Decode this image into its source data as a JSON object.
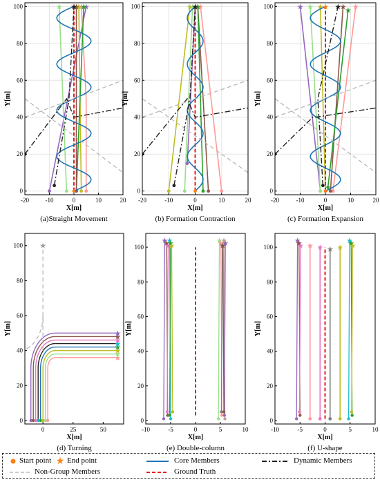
{
  "figure": {
    "colors": {
      "core": "#1f77b4",
      "dynamic": "#222222",
      "non_group": "#b8b8b8",
      "ground_truth": "#e41a1c",
      "start_marker": "#ff7f0e",
      "end_marker": "#ff7f0e"
    },
    "member_colors": [
      "#9467bd",
      "#8c564b",
      "#e377c2",
      "#17becf",
      "#2ca02c",
      "#bcbd22",
      "#98df8a",
      "#ff9896",
      "#7f7f7f",
      "#c49c94"
    ]
  },
  "chart_data": [
    {
      "type": "line",
      "caption": "(a)Straight Movement",
      "xlabel": "X[m]",
      "ylabel": "Y[m]",
      "xlim": [
        -20,
        20
      ],
      "ylim": [
        -2,
        102
      ],
      "xticks": [
        -20,
        -10,
        0,
        10,
        20
      ],
      "yticks": [
        0,
        20,
        40,
        60,
        80,
        100
      ],
      "grid": true,
      "series": [
        {
          "role": "member",
          "color": "#9467bd",
          "x": [
            -10,
            5
          ],
          "y": [
            0,
            100
          ]
        },
        {
          "role": "member",
          "color": "#ff9896",
          "x": [
            5,
            5,
            3
          ],
          "y": [
            0,
            50,
            100
          ]
        },
        {
          "role": "member",
          "color": "#bcbd22",
          "x": [
            3,
            2
          ],
          "y": [
            0,
            100
          ]
        },
        {
          "role": "member",
          "color": "#98df8a",
          "x": [
            -3,
            -6
          ],
          "y": [
            0,
            100
          ]
        },
        {
          "role": "member",
          "color": "#2ca02c",
          "x": [
            1,
            4
          ],
          "y": [
            0,
            100
          ]
        },
        {
          "role": "member",
          "color": "#8c564b",
          "x": [
            1,
            1
          ],
          "y": [
            0,
            100
          ]
        },
        {
          "role": "ground_truth",
          "color": "#e41a1c",
          "x": [
            0,
            0
          ],
          "y": [
            0,
            100
          ]
        },
        {
          "role": "core",
          "color": "#1f77b4",
          "wave": {
            "amp": 7,
            "period": 25,
            "x0": 0
          },
          "y": [
            0,
            100
          ]
        },
        {
          "role": "dynamic",
          "color": "#222222",
          "x": [
            -8,
            -2,
            0
          ],
          "y": [
            3,
            50,
            100
          ]
        },
        {
          "role": "dynamic",
          "color": "#222222",
          "x": [
            -20,
            -3,
            0,
            20
          ],
          "y": [
            20,
            50,
            40,
            45
          ]
        },
        {
          "role": "non_group",
          "color": "#b8b8b8",
          "x": [
            -20,
            20
          ],
          "y": [
            40,
            60
          ]
        },
        {
          "role": "non_group",
          "color": "#b8b8b8",
          "x": [
            -20,
            20
          ],
          "y": [
            50,
            10
          ]
        }
      ]
    },
    {
      "type": "line",
      "caption": "(b) Formation Contraction",
      "xlabel": "X[m]",
      "ylabel": "Y[m]",
      "xlim": [
        -20,
        20
      ],
      "ylim": [
        -2,
        102
      ],
      "xticks": [
        -20,
        -10,
        0,
        10,
        20
      ],
      "yticks": [
        0,
        20,
        40,
        60,
        80,
        100
      ],
      "grid": true,
      "series": [
        {
          "role": "member",
          "color": "#bcbd22",
          "x": [
            -10,
            -2
          ],
          "y": [
            0,
            100
          ]
        },
        {
          "role": "member",
          "color": "#98df8a",
          "x": [
            -4,
            -1
          ],
          "y": [
            0,
            100
          ]
        },
        {
          "role": "member",
          "color": "#ff9896",
          "x": [
            10,
            2
          ],
          "y": [
            0,
            100
          ]
        },
        {
          "role": "member",
          "color": "#8c564b",
          "x": [
            5,
            1
          ],
          "y": [
            0,
            100
          ]
        },
        {
          "role": "member",
          "color": "#2ca02c",
          "x": [
            3,
            1
          ],
          "y": [
            0,
            100
          ]
        },
        {
          "role": "member",
          "color": "#9467bd",
          "x": [
            -3,
            0
          ],
          "y": [
            15,
            100
          ]
        },
        {
          "role": "ground_truth",
          "color": "#e41a1c",
          "x": [
            0,
            0
          ],
          "y": [
            0,
            100
          ]
        },
        {
          "role": "core",
          "color": "#1f77b4",
          "wave": {
            "amp": 3,
            "period": 25,
            "x0": 0
          },
          "y": [
            0,
            100
          ]
        },
        {
          "role": "dynamic",
          "color": "#222222",
          "x": [
            -8,
            -2,
            0
          ],
          "y": [
            3,
            50,
            100
          ]
        },
        {
          "role": "dynamic",
          "color": "#222222",
          "x": [
            -20,
            -3,
            0,
            20
          ],
          "y": [
            20,
            50,
            40,
            45
          ]
        },
        {
          "role": "non_group",
          "color": "#b8b8b8",
          "x": [
            -20,
            20
          ],
          "y": [
            40,
            60
          ]
        },
        {
          "role": "non_group",
          "color": "#b8b8b8",
          "x": [
            -20,
            20
          ],
          "y": [
            50,
            10
          ]
        }
      ]
    },
    {
      "type": "line",
      "caption": "(c) Formation Expansion",
      "xlabel": "X[m]",
      "ylabel": "Y[m]",
      "xlim": [
        -20,
        20
      ],
      "ylim": [
        -2,
        102
      ],
      "xticks": [
        -20,
        -10,
        0,
        10,
        20
      ],
      "yticks": [
        0,
        20,
        40,
        60,
        80,
        100
      ],
      "grid": true,
      "series": [
        {
          "role": "member",
          "color": "#9467bd",
          "x": [
            -2,
            -10
          ],
          "y": [
            0,
            100
          ]
        },
        {
          "role": "member",
          "color": "#98df8a",
          "x": [
            -2,
            -6
          ],
          "y": [
            0,
            100
          ]
        },
        {
          "role": "member",
          "color": "#ff9896",
          "x": [
            3,
            12
          ],
          "y": [
            0,
            100
          ]
        },
        {
          "role": "member",
          "color": "#8c564b",
          "x": [
            2,
            7
          ],
          "y": [
            0,
            100
          ]
        },
        {
          "role": "member",
          "color": "#bcbd22",
          "x": [
            0,
            -2
          ],
          "y": [
            0,
            100
          ]
        },
        {
          "role": "member",
          "color": "#2ca02c",
          "x": [
            1,
            9
          ],
          "y": [
            2,
            98
          ]
        },
        {
          "role": "ground_truth",
          "color": "#e41a1c",
          "x": [
            0,
            0
          ],
          "y": [
            0,
            100
          ]
        },
        {
          "role": "core",
          "color": "#1f77b4",
          "wave": {
            "amp": 6,
            "period": 25,
            "x0": 0
          },
          "y": [
            0,
            100
          ]
        },
        {
          "role": "dynamic",
          "color": "#222222",
          "x": [
            -1,
            -3,
            5
          ],
          "y": [
            3,
            50,
            100
          ]
        },
        {
          "role": "dynamic",
          "color": "#222222",
          "x": [
            -20,
            -5,
            -4,
            20
          ],
          "y": [
            20,
            40,
            40,
            45
          ]
        },
        {
          "role": "non_group",
          "color": "#b8b8b8",
          "x": [
            -20,
            20
          ],
          "y": [
            40,
            60
          ]
        },
        {
          "role": "non_group",
          "color": "#b8b8b8",
          "x": [
            -20,
            20
          ],
          "y": [
            50,
            10
          ]
        }
      ]
    },
    {
      "type": "line",
      "caption": "(d) Turning",
      "xlabel": "X[m]",
      "ylabel": "Y[m]",
      "xlim": [
        -15,
        67
      ],
      "ylim": [
        -2,
        107
      ],
      "xticks": [
        0,
        25,
        50
      ],
      "yticks": [
        0,
        20,
        40,
        60,
        80,
        100
      ],
      "grid": false,
      "turn": {
        "radii": [
          20,
          18,
          16,
          14,
          12,
          10,
          8,
          6
        ],
        "end_x": 62
      },
      "series": [
        {
          "role": "non_group",
          "color": "#b8b8b8",
          "x": [
            0,
            0
          ],
          "y": [
            40,
            100
          ]
        },
        {
          "role": "non_group",
          "color": "#b8b8b8",
          "arc": {
            "cx": -20,
            "cy": 40,
            "r": 20
          }
        }
      ]
    },
    {
      "type": "line",
      "caption": "(e) Double-column",
      "xlabel": "X[m]",
      "ylabel": "Y[m]",
      "xlim": [
        -10,
        10
      ],
      "ylim": [
        -2,
        108
      ],
      "xticks": [
        -10,
        -5,
        0,
        5,
        10
      ],
      "yticks": [
        0,
        20,
        40,
        60,
        80,
        100
      ],
      "grid": false,
      "columns": [
        {
          "x": [
            -6.2,
            -5.8,
            -5.5,
            -5.2,
            -5.0,
            -4.8
          ],
          "y0": 1,
          "y1": 104
        },
        {
          "x": [
            4.8,
            5.1,
            5.4,
            5.7,
            6.0,
            5.5
          ],
          "y0": 1,
          "y1": 104
        }
      ],
      "series": [
        {
          "role": "ground_truth",
          "color": "#e41a1c",
          "x": [
            0,
            0
          ],
          "y": [
            3,
            100
          ]
        }
      ]
    },
    {
      "type": "line",
      "caption": "(f) U-shape",
      "xlabel": "X[m]",
      "ylabel": "Y[m]",
      "xlim": [
        -10,
        10
      ],
      "ylim": [
        -2,
        108
      ],
      "xticks": [
        -10,
        -5,
        0,
        5,
        10
      ],
      "yticks": [
        0,
        20,
        40,
        60,
        80,
        100
      ],
      "grid": false,
      "columns": [
        {
          "x": [
            -5.5,
            -5.2,
            -4.9
          ],
          "y0": 1,
          "y1": 104
        },
        {
          "x": [
            4.9,
            5.2,
            5.5
          ],
          "y0": 1,
          "y1": 104
        }
      ],
      "series": [
        {
          "role": "member",
          "color": "#ff9896",
          "x": [
            -3,
            -3
          ],
          "y": [
            1,
            101
          ]
        },
        {
          "role": "member",
          "color": "#e377c2",
          "x": [
            -1,
            -1
          ],
          "y": [
            1,
            100
          ]
        },
        {
          "role": "member",
          "color": "#7f7f7f",
          "x": [
            1,
            1
          ],
          "y": [
            1,
            99
          ]
        },
        {
          "role": "member",
          "color": "#bcbd22",
          "x": [
            3,
            3
          ],
          "y": [
            1,
            100
          ]
        },
        {
          "role": "ground_truth",
          "color": "#e41a1c",
          "x": [
            0,
            0
          ],
          "y": [
            1,
            100
          ]
        }
      ]
    }
  ],
  "legend": {
    "start": "Start point",
    "end": "End point",
    "core": "Core Members",
    "dynamic": "Dynamic Members",
    "non_group": "Non-Group Members",
    "ground_truth": "Ground Truth"
  }
}
